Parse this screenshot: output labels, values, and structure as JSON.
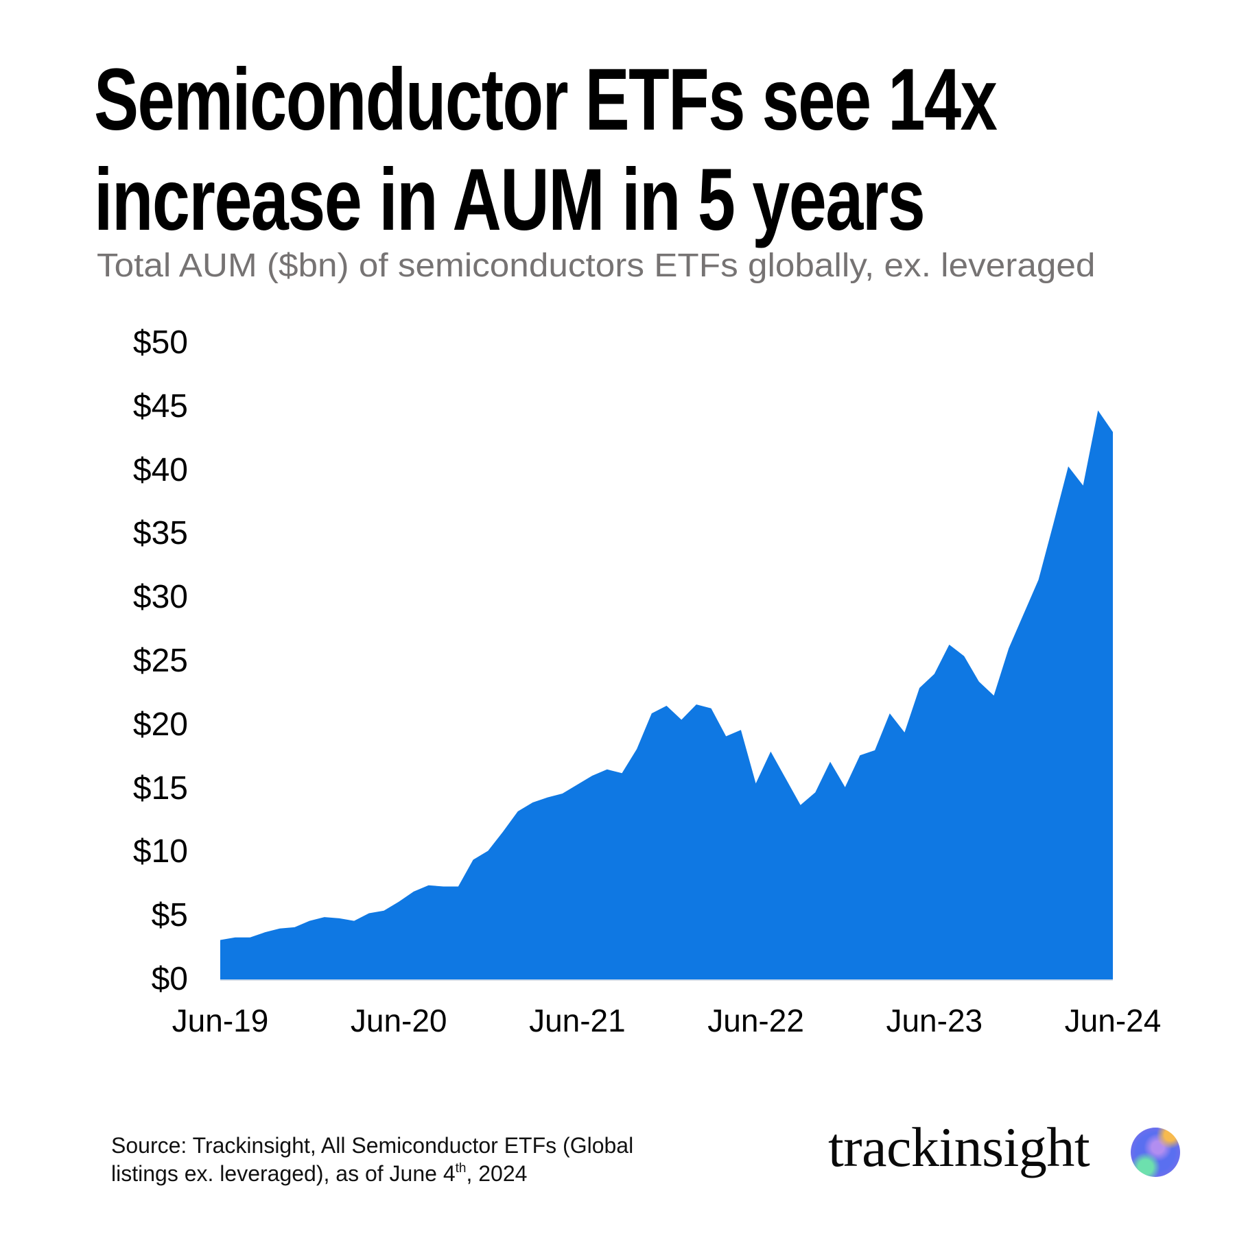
{
  "header": {
    "title_line_1": "Semiconductor ETFs see 14x",
    "title_line_2": "increase in AUM in 5 years",
    "subtitle": "Total AUM ($bn) of semiconductors ETFs globally, ex. leveraged"
  },
  "footer": {
    "source_line_1": "Source: Trackinsight, All Semiconductor ETFs (Global",
    "source_line_2_pre": "listings ex. leveraged), as of June 4",
    "source_line_2_sup": "th",
    "source_line_2_post": ", 2024",
    "brand_name": "trackinsight",
    "brand_icon": "gradient-orb-logo-icon"
  },
  "colors": {
    "area_fill": "#0F78E3",
    "axis_line": "#D3DCE8",
    "subtitle": "#767373",
    "text": "#000000"
  },
  "chart_data": {
    "type": "area",
    "title": "Semiconductor ETFs see 14x increase in AUM in 5 years",
    "subtitle": "Total AUM ($bn) of semiconductors ETFs globally, ex. leveraged",
    "xlabel": "",
    "ylabel": "Total AUM ($bn)",
    "ylim": [
      0,
      50
    ],
    "yticks": [
      0,
      5,
      10,
      15,
      20,
      25,
      30,
      35,
      40,
      45,
      50
    ],
    "ytick_labels": [
      "$0",
      "$5",
      "$10",
      "$15",
      "$20",
      "$25",
      "$30",
      "$35",
      "$40",
      "$45",
      "$50"
    ],
    "xtick_labels": [
      "Jun-19",
      "Jun-20",
      "Jun-21",
      "Jun-22",
      "Jun-23",
      "Jun-24"
    ],
    "xtick_indices": [
      0,
      12,
      24,
      36,
      48,
      60
    ],
    "grid": false,
    "legend": null,
    "x_frequency": "monthly",
    "x_start": "Jun-19",
    "x_end": "Jun-24",
    "series": [
      {
        "name": "Total AUM ($bn)",
        "values": [
          3.1,
          3.3,
          3.3,
          3.7,
          4.0,
          4.1,
          4.6,
          4.9,
          4.8,
          4.6,
          5.2,
          5.4,
          6.1,
          6.9,
          7.4,
          7.3,
          7.3,
          9.4,
          10.1,
          11.6,
          13.2,
          13.9,
          14.3,
          14.6,
          15.3,
          16.0,
          16.5,
          16.2,
          18.1,
          20.9,
          21.5,
          20.4,
          21.6,
          21.3,
          19.1,
          19.6,
          15.4,
          17.9,
          15.8,
          13.7,
          14.7,
          17.1,
          15.1,
          17.6,
          18.0,
          20.9,
          19.4,
          22.9,
          24.0,
          26.3,
          25.4,
          23.4,
          22.3,
          26.0,
          28.7,
          31.4,
          35.8,
          40.3,
          38.8,
          44.7,
          43.0
        ]
      }
    ]
  }
}
